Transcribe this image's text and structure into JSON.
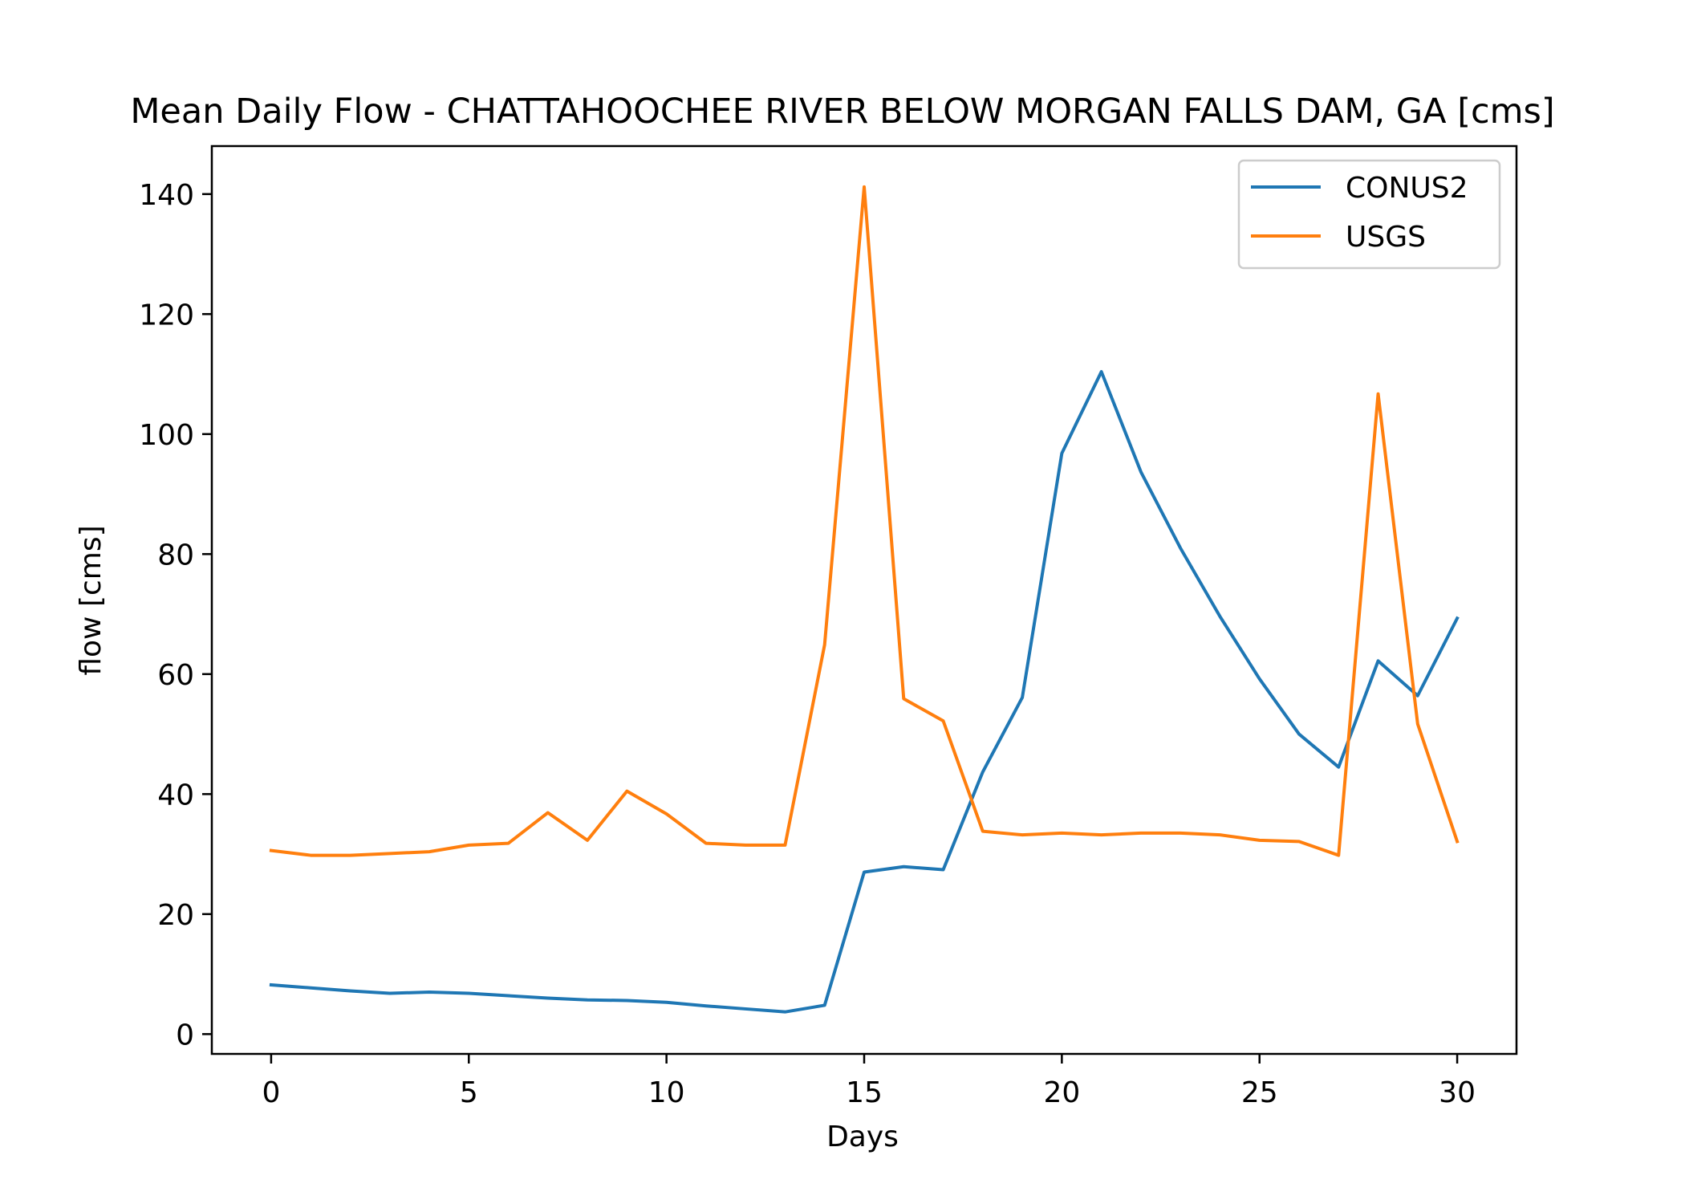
{
  "chart_data": {
    "type": "line",
    "title": "Mean Daily Flow - CHATTAHOOCHEE RIVER BELOW MORGAN FALLS DAM, GA [cms]",
    "xlabel": "Days",
    "ylabel": "flow [cms]",
    "xlim": [
      -1.5,
      31.5
    ],
    "ylim": [
      -3.3,
      148.0
    ],
    "xticks": [
      0,
      5,
      10,
      15,
      20,
      25,
      30
    ],
    "yticks": [
      0,
      20,
      40,
      60,
      80,
      100,
      120,
      140
    ],
    "grid": false,
    "legend_position": "top-right",
    "x": [
      0,
      1,
      2,
      3,
      4,
      5,
      6,
      7,
      8,
      9,
      10,
      11,
      12,
      13,
      14,
      15,
      16,
      17,
      18,
      19,
      20,
      21,
      22,
      23,
      24,
      25,
      26,
      27,
      28,
      29,
      30
    ],
    "series": [
      {
        "name": "CONUS2",
        "color": "#1f77b4",
        "values": [
          8.2,
          7.7,
          7.2,
          6.8,
          7.0,
          6.8,
          6.4,
          6.0,
          5.7,
          5.6,
          5.3,
          4.7,
          4.2,
          3.7,
          4.8,
          27.0,
          27.9,
          27.4,
          43.7,
          56.1,
          96.8,
          110.4,
          93.7,
          81.0,
          69.6,
          59.2,
          50.0,
          44.5,
          62.2,
          56.4,
          69.3
        ]
      },
      {
        "name": "USGS",
        "color": "#ff7f0e",
        "values": [
          30.6,
          29.8,
          29.8,
          30.1,
          30.4,
          31.5,
          31.8,
          36.9,
          32.3,
          40.5,
          36.7,
          31.8,
          31.5,
          31.5,
          64.9,
          141.2,
          55.9,
          52.2,
          33.8,
          33.2,
          33.5,
          33.2,
          33.5,
          33.5,
          33.2,
          32.3,
          32.1,
          29.8,
          106.7,
          51.7,
          32.1
        ]
      }
    ]
  }
}
